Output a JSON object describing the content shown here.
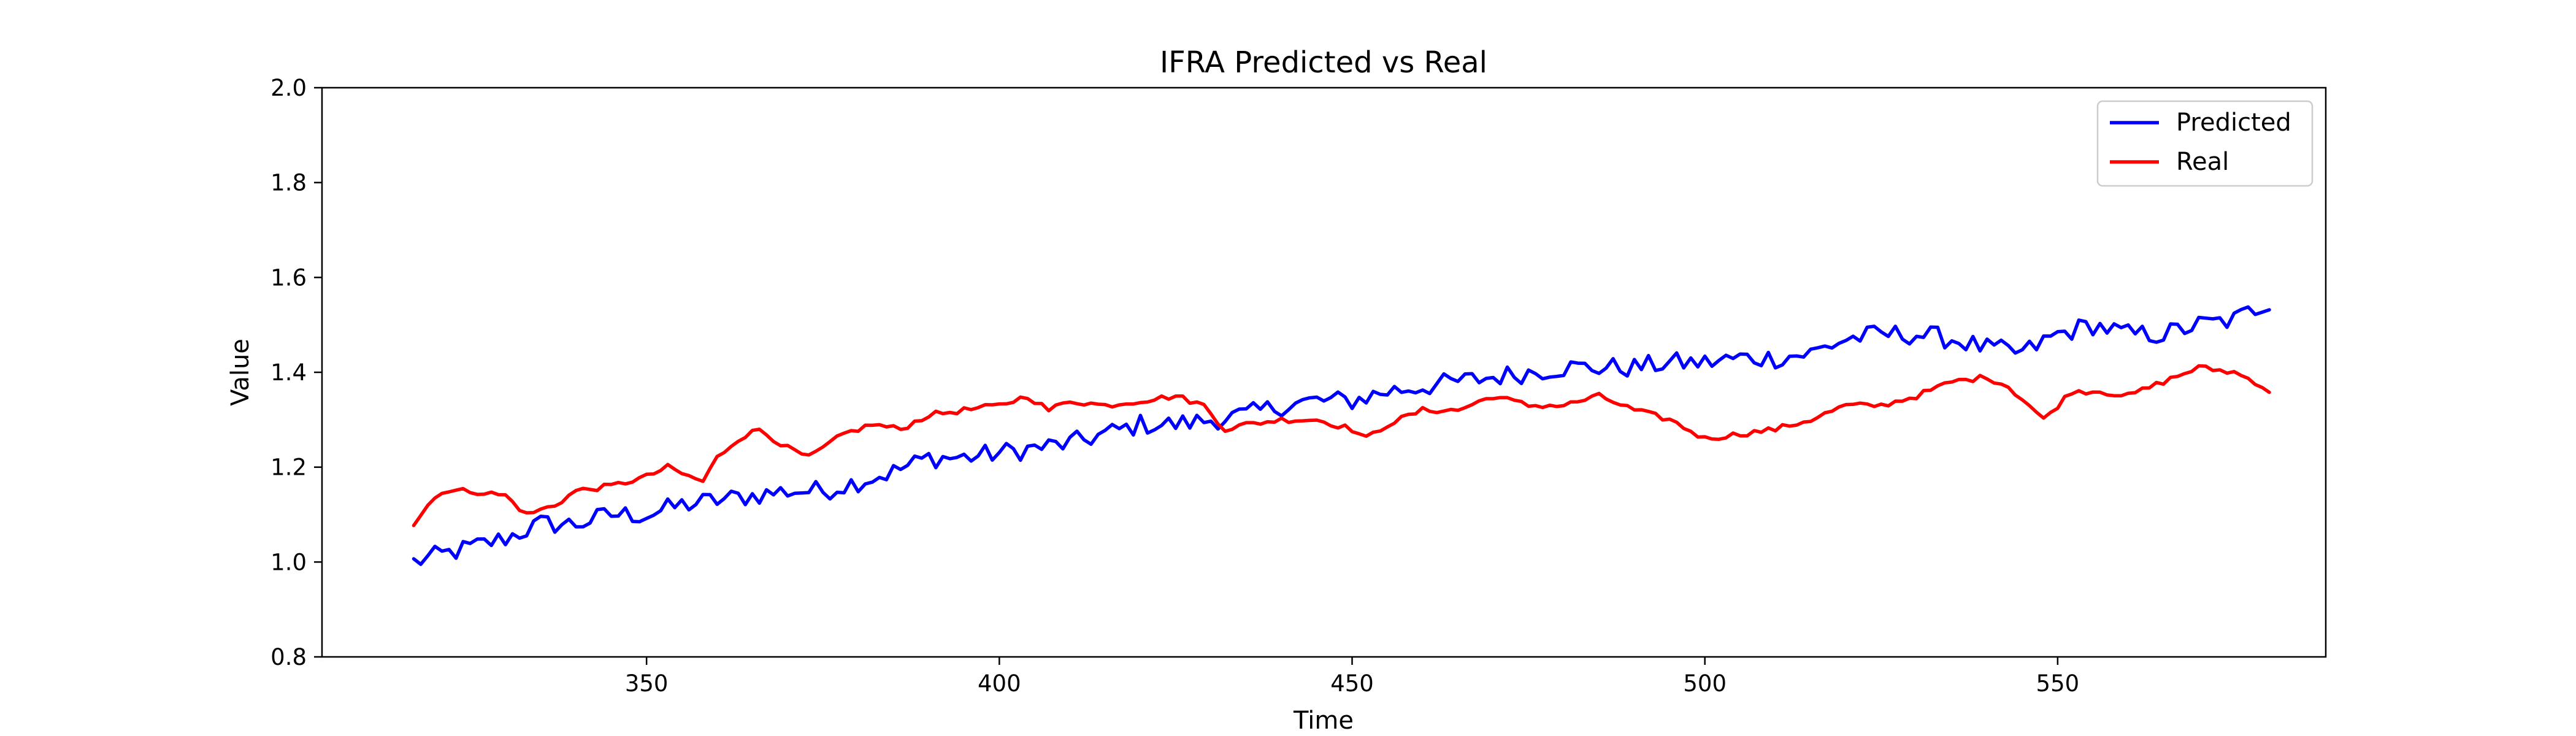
{
  "chart_data": {
    "type": "line",
    "title": "IFRA Predicted vs Real",
    "xlabel": "Time",
    "ylabel": "Value",
    "xlim": [
      304,
      588
    ],
    "ylim": [
      0.8,
      2.0
    ],
    "xticks": [
      350,
      400,
      450,
      500,
      550
    ],
    "yticks": [
      0.8,
      1.0,
      1.2,
      1.4,
      1.6,
      1.8,
      2.0
    ],
    "xtick_labels": [
      "350",
      "400",
      "450",
      "500",
      "550"
    ],
    "ytick_labels": [
      "0.8",
      "1.0",
      "1.2",
      "1.4",
      "1.6",
      "1.8",
      "2.0"
    ],
    "grid": false,
    "legend_position": "top-right",
    "x_start": 317,
    "x_end": 580,
    "series": [
      {
        "name": "Predicted",
        "color": "#0000ff",
        "anchors": [
          [
            317,
            1.0
          ],
          [
            325,
            1.03
          ],
          [
            330,
            1.05
          ],
          [
            335,
            1.08
          ],
          [
            340,
            1.08
          ],
          [
            345,
            1.1
          ],
          [
            350,
            1.1
          ],
          [
            355,
            1.12
          ],
          [
            360,
            1.13
          ],
          [
            365,
            1.14
          ],
          [
            370,
            1.15
          ],
          [
            375,
            1.15
          ],
          [
            380,
            1.17
          ],
          [
            385,
            1.19
          ],
          [
            390,
            1.22
          ],
          [
            395,
            1.22
          ],
          [
            400,
            1.23
          ],
          [
            405,
            1.24
          ],
          [
            410,
            1.25
          ],
          [
            415,
            1.27
          ],
          [
            420,
            1.29
          ],
          [
            425,
            1.29
          ],
          [
            430,
            1.3
          ],
          [
            435,
            1.31
          ],
          [
            440,
            1.33
          ],
          [
            445,
            1.34
          ],
          [
            450,
            1.34
          ],
          [
            455,
            1.36
          ],
          [
            460,
            1.37
          ],
          [
            465,
            1.38
          ],
          [
            470,
            1.39
          ],
          [
            475,
            1.4
          ],
          [
            480,
            1.41
          ],
          [
            485,
            1.41
          ],
          [
            490,
            1.41
          ],
          [
            495,
            1.42
          ],
          [
            500,
            1.42
          ],
          [
            505,
            1.43
          ],
          [
            510,
            1.43
          ],
          [
            515,
            1.44
          ],
          [
            520,
            1.47
          ],
          [
            525,
            1.48
          ],
          [
            530,
            1.48
          ],
          [
            535,
            1.47
          ],
          [
            540,
            1.45
          ],
          [
            545,
            1.44
          ],
          [
            550,
            1.48
          ],
          [
            555,
            1.5
          ],
          [
            560,
            1.48
          ],
          [
            565,
            1.48
          ],
          [
            570,
            1.5
          ],
          [
            575,
            1.51
          ],
          [
            580,
            1.55
          ]
        ],
        "noise": 0.022
      },
      {
        "name": "Real",
        "color": "#ff0000",
        "anchors": [
          [
            317,
            1.08
          ],
          [
            319,
            1.12
          ],
          [
            321,
            1.15
          ],
          [
            325,
            1.15
          ],
          [
            330,
            1.14
          ],
          [
            333,
            1.1
          ],
          [
            337,
            1.12
          ],
          [
            340,
            1.15
          ],
          [
            345,
            1.16
          ],
          [
            350,
            1.18
          ],
          [
            353,
            1.2
          ],
          [
            356,
            1.18
          ],
          [
            358,
            1.17
          ],
          [
            360,
            1.22
          ],
          [
            363,
            1.26
          ],
          [
            366,
            1.28
          ],
          [
            370,
            1.24
          ],
          [
            373,
            1.22
          ],
          [
            375,
            1.24
          ],
          [
            378,
            1.27
          ],
          [
            382,
            1.29
          ],
          [
            386,
            1.28
          ],
          [
            390,
            1.31
          ],
          [
            395,
            1.32
          ],
          [
            400,
            1.33
          ],
          [
            404,
            1.35
          ],
          [
            407,
            1.32
          ],
          [
            410,
            1.34
          ],
          [
            415,
            1.33
          ],
          [
            420,
            1.34
          ],
          [
            425,
            1.35
          ],
          [
            429,
            1.33
          ],
          [
            432,
            1.28
          ],
          [
            435,
            1.29
          ],
          [
            440,
            1.3
          ],
          [
            445,
            1.3
          ],
          [
            450,
            1.28
          ],
          [
            452,
            1.26
          ],
          [
            455,
            1.29
          ],
          [
            460,
            1.32
          ],
          [
            465,
            1.32
          ],
          [
            470,
            1.35
          ],
          [
            475,
            1.33
          ],
          [
            480,
            1.33
          ],
          [
            485,
            1.35
          ],
          [
            490,
            1.32
          ],
          [
            495,
            1.3
          ],
          [
            500,
            1.26
          ],
          [
            505,
            1.27
          ],
          [
            510,
            1.28
          ],
          [
            515,
            1.3
          ],
          [
            520,
            1.33
          ],
          [
            525,
            1.33
          ],
          [
            530,
            1.35
          ],
          [
            535,
            1.38
          ],
          [
            540,
            1.39
          ],
          [
            543,
            1.37
          ],
          [
            546,
            1.33
          ],
          [
            548,
            1.3
          ],
          [
            552,
            1.36
          ],
          [
            556,
            1.36
          ],
          [
            560,
            1.35
          ],
          [
            565,
            1.38
          ],
          [
            570,
            1.41
          ],
          [
            575,
            1.4
          ],
          [
            578,
            1.38
          ],
          [
            580,
            1.36
          ]
        ],
        "noise": 0.006
      }
    ]
  }
}
